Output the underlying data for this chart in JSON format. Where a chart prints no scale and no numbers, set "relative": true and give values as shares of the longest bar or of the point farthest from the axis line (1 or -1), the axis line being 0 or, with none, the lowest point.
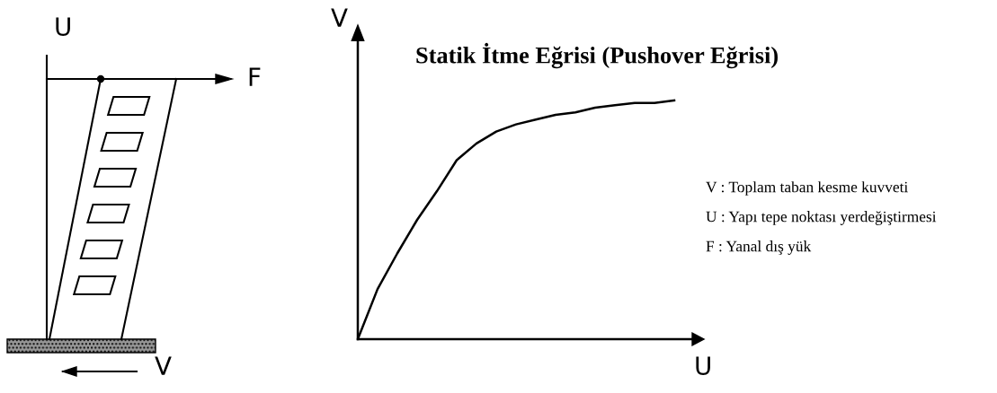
{
  "chart_data": {
    "type": "line",
    "title": "Statik İtme Eğrisi (Pushover Eğrisi)",
    "xlabel": "U",
    "ylabel": "V",
    "relative": true,
    "categories": [
      null,
      null,
      null,
      null,
      null,
      null,
      null,
      null,
      null,
      null,
      null,
      null,
      null,
      null,
      null,
      null,
      null
    ],
    "series": [
      {
        "color": "#000000",
        "values": [
          0,
          0.21,
          0.36,
          0.5,
          0.62,
          0.75,
          0.82,
          0.87,
          0.9,
          0.92,
          0.94,
          0.95,
          0.97,
          0.98,
          0.99,
          0.99,
          1
        ]
      }
    ],
    "annotations": [
      "V : Toplam taban kesme kuvveti",
      "U : Yapı tepe noktası yerdeğiştirmesi",
      "F : Yanal dış yük",
      "U",
      "F",
      "V"
    ],
    "tick_labels": false,
    "legend": false,
    "marker": "none",
    "line_style": "solid"
  }
}
